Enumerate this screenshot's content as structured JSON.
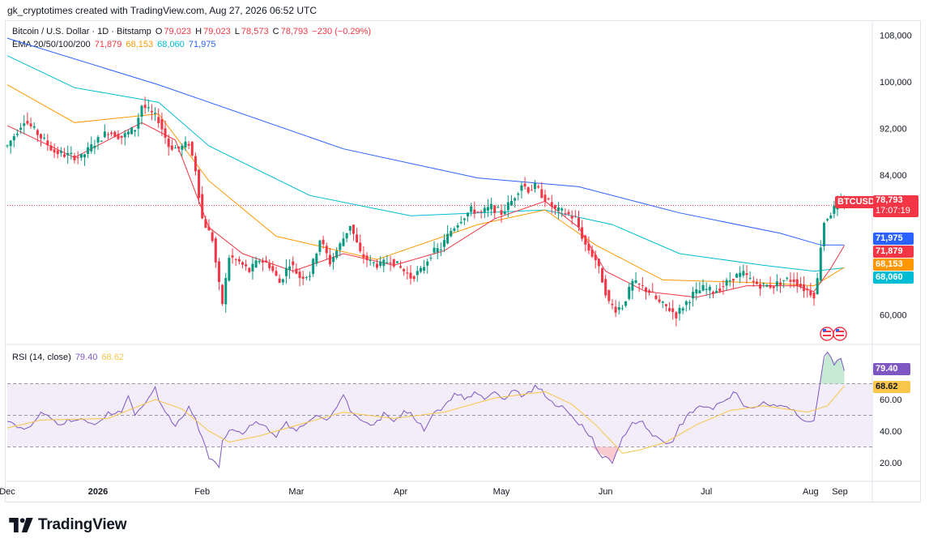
{
  "credit": "gk_cryptotimes created with TradingView.com, Aug 27, 2026 06:52 UTC",
  "symbol": {
    "name": "Bitcoin / U.S. Dollar · 1D · Bitstamp",
    "o_label": "O",
    "o": "79,023",
    "h_label": "H",
    "h": "79,023",
    "l_label": "L",
    "l": "78,573",
    "c_label": "C",
    "c": "78,793",
    "change": "−230 (−0.29%)",
    "ticker": "BTCUSD",
    "countdown": "17:07:19",
    "last": "78,793"
  },
  "ema": {
    "label": "EMA 20/50/100/200",
    "ema20": "71,879",
    "ema50": "68,153",
    "ema100": "68,060",
    "ema200": "71,975"
  },
  "rsi": {
    "label": "RSI (14, close)",
    "value": "79.40",
    "ma": "68.62"
  },
  "colors": {
    "up": "#089981",
    "down": "#f23645",
    "ema20": "#f23645",
    "ema50": "#ff9800",
    "ema100": "#00bcd4",
    "ema200": "#2962ff",
    "rsi": "#7e57c2",
    "rsi_ma": "#f7c64a"
  },
  "brand": "TradingView",
  "chart_data": [
    {
      "type": "candlestick",
      "title": "Bitcoin / U.S. Dollar · 1D · Bitstamp",
      "y_ticks": [
        "108,000",
        "100,000",
        "92,000",
        "84,000",
        "60,000"
      ],
      "y_tick_values": [
        108000,
        100000,
        92000,
        84000,
        60000
      ],
      "x_ticks": [
        "Dec",
        "2026",
        "Feb",
        "Mar",
        "Apr",
        "May",
        "Jun",
        "Jul",
        "Aug",
        "Sep"
      ],
      "ylim": [
        54000,
        110000
      ],
      "last_price": 78793,
      "anchors": [
        [
          0,
          89000
        ],
        [
          5,
          93500
        ],
        [
          10,
          90500
        ],
        [
          14,
          88000
        ],
        [
          17,
          87500
        ],
        [
          22,
          87000
        ],
        [
          26,
          89500
        ],
        [
          30,
          91500
        ],
        [
          34,
          90500
        ],
        [
          38,
          92000
        ],
        [
          40,
          96000
        ],
        [
          42,
          95000
        ],
        [
          45,
          93500
        ],
        [
          48,
          89000
        ],
        [
          51,
          88500
        ],
        [
          54,
          89500
        ],
        [
          56,
          85000
        ],
        [
          58,
          76500
        ],
        [
          61,
          73000
        ],
        [
          63,
          65000
        ],
        [
          64,
          62000
        ],
        [
          66,
          70000
        ],
        [
          69,
          69000
        ],
        [
          72,
          67500
        ],
        [
          75,
          69500
        ],
        [
          78,
          68500
        ],
        [
          81,
          65500
        ],
        [
          84,
          69000
        ],
        [
          87,
          66500
        ],
        [
          90,
          67000
        ],
        [
          93,
          73000
        ],
        [
          96,
          69000
        ],
        [
          99,
          72000
        ],
        [
          102,
          75500
        ],
        [
          105,
          70500
        ],
        [
          108,
          69000
        ],
        [
          111,
          68500
        ],
        [
          114,
          69500
        ],
        [
          117,
          68000
        ],
        [
          120,
          66500
        ],
        [
          123,
          67500
        ],
        [
          126,
          70500
        ],
        [
          129,
          71500
        ],
        [
          132,
          74500
        ],
        [
          135,
          76500
        ],
        [
          138,
          78000
        ],
        [
          141,
          77500
        ],
        [
          144,
          78500
        ],
        [
          147,
          77500
        ],
        [
          150,
          79500
        ],
        [
          153,
          82500
        ],
        [
          155,
          81500
        ],
        [
          157,
          82000
        ],
        [
          160,
          80000
        ],
        [
          163,
          78000
        ],
        [
          166,
          77500
        ],
        [
          169,
          76500
        ],
        [
          172,
          72000
        ],
        [
          175,
          69500
        ],
        [
          177,
          66000
        ],
        [
          179,
          62000
        ],
        [
          181,
          61000
        ],
        [
          183,
          61500
        ],
        [
          186,
          65500
        ],
        [
          188,
          65000
        ],
        [
          191,
          64000
        ],
        [
          194,
          62000
        ],
        [
          197,
          61000
        ],
        [
          199,
          60000
        ],
        [
          201,
          61500
        ],
        [
          204,
          63500
        ],
        [
          207,
          64500
        ],
        [
          210,
          64000
        ],
        [
          213,
          65000
        ],
        [
          216,
          66500
        ],
        [
          219,
          67000
        ],
        [
          222,
          65500
        ],
        [
          225,
          65000
        ],
        [
          228,
          65000
        ],
        [
          231,
          66000
        ],
        [
          234,
          66000
        ],
        [
          237,
          64500
        ],
        [
          240,
          63500
        ],
        [
          241,
          66000
        ],
        [
          242,
          72000
        ],
        [
          243,
          76000
        ],
        [
          245,
          77500
        ],
        [
          247,
          79000
        ],
        [
          249,
          78800
        ]
      ],
      "ema20": [
        [
          0,
          92500
        ],
        [
          20,
          87000
        ],
        [
          40,
          93000
        ],
        [
          50,
          90000
        ],
        [
          60,
          75000
        ],
        [
          70,
          70500
        ],
        [
          85,
          67500
        ],
        [
          100,
          70500
        ],
        [
          115,
          68500
        ],
        [
          130,
          71000
        ],
        [
          145,
          76500
        ],
        [
          160,
          79500
        ],
        [
          170,
          75000
        ],
        [
          178,
          67500
        ],
        [
          190,
          64000
        ],
        [
          205,
          63000
        ],
        [
          220,
          65000
        ],
        [
          235,
          65000
        ],
        [
          240,
          64000
        ],
        [
          245,
          68000
        ],
        [
          249,
          71879
        ]
      ],
      "ema50": [
        [
          0,
          99500
        ],
        [
          20,
          93000
        ],
        [
          45,
          94500
        ],
        [
          60,
          83000
        ],
        [
          80,
          73500
        ],
        [
          110,
          69500
        ],
        [
          140,
          75500
        ],
        [
          160,
          78000
        ],
        [
          175,
          72000
        ],
        [
          195,
          66000
        ],
        [
          225,
          65500
        ],
        [
          240,
          65000
        ],
        [
          249,
          68153
        ]
      ],
      "ema100": [
        [
          0,
          104500
        ],
        [
          20,
          99000
        ],
        [
          45,
          96500
        ],
        [
          60,
          89000
        ],
        [
          90,
          80500
        ],
        [
          120,
          77000
        ],
        [
          160,
          78000
        ],
        [
          180,
          75500
        ],
        [
          200,
          70500
        ],
        [
          225,
          68500
        ],
        [
          240,
          67500
        ],
        [
          249,
          68060
        ]
      ],
      "ema200": [
        [
          0,
          107500
        ],
        [
          45,
          99500
        ],
        [
          100,
          88500
        ],
        [
          140,
          83500
        ],
        [
          170,
          82000
        ],
        [
          200,
          77500
        ],
        [
          230,
          74000
        ],
        [
          242,
          72000
        ],
        [
          249,
          71975
        ]
      ]
    },
    {
      "type": "line",
      "title": "RSI (14, close)",
      "y_ticks": [
        "60.00",
        "40.00",
        "20.00"
      ],
      "y_tick_values": [
        60,
        40,
        20
      ],
      "bands": [
        30,
        50,
        70
      ],
      "ylim": [
        10,
        90
      ],
      "rsi": [
        [
          0,
          47
        ],
        [
          6,
          40
        ],
        [
          10,
          52
        ],
        [
          16,
          44
        ],
        [
          22,
          48
        ],
        [
          26,
          44
        ],
        [
          30,
          50
        ],
        [
          34,
          52
        ],
        [
          36,
          63
        ],
        [
          38,
          50
        ],
        [
          42,
          60
        ],
        [
          44,
          68
        ],
        [
          46,
          56
        ],
        [
          48,
          48
        ],
        [
          50,
          43
        ],
        [
          54,
          54
        ],
        [
          56,
          48
        ],
        [
          58,
          36
        ],
        [
          60,
          24
        ],
        [
          63,
          18
        ],
        [
          64,
          34
        ],
        [
          67,
          41
        ],
        [
          70,
          38
        ],
        [
          74,
          46
        ],
        [
          77,
          43
        ],
        [
          80,
          36
        ],
        [
          83,
          46
        ],
        [
          86,
          40
        ],
        [
          89,
          45
        ],
        [
          92,
          50
        ],
        [
          95,
          47
        ],
        [
          98,
          55
        ],
        [
          100,
          63
        ],
        [
          103,
          51
        ],
        [
          106,
          46
        ],
        [
          109,
          44
        ],
        [
          112,
          52
        ],
        [
          115,
          46
        ],
        [
          118,
          53
        ],
        [
          121,
          48
        ],
        [
          124,
          40
        ],
        [
          127,
          52
        ],
        [
          130,
          56
        ],
        [
          133,
          64
        ],
        [
          136,
          60
        ],
        [
          139,
          65
        ],
        [
          142,
          60
        ],
        [
          145,
          65
        ],
        [
          148,
          60
        ],
        [
          151,
          66
        ],
        [
          154,
          63
        ],
        [
          157,
          69
        ],
        [
          160,
          62
        ],
        [
          163,
          56
        ],
        [
          166,
          54
        ],
        [
          170,
          44
        ],
        [
          172,
          40
        ],
        [
          174,
          34
        ],
        [
          176,
          26
        ],
        [
          178,
          24
        ],
        [
          180,
          21
        ],
        [
          182,
          30
        ],
        [
          185,
          42
        ],
        [
          188,
          46
        ],
        [
          191,
          40
        ],
        [
          193,
          37
        ],
        [
          196,
          32
        ],
        [
          198,
          33
        ],
        [
          200,
          44
        ],
        [
          203,
          52
        ],
        [
          206,
          56
        ],
        [
          209,
          55
        ],
        [
          212,
          58
        ],
        [
          215,
          61
        ],
        [
          217,
          64
        ],
        [
          219,
          56
        ],
        [
          222,
          54
        ],
        [
          225,
          58
        ],
        [
          228,
          55
        ],
        [
          231,
          57
        ],
        [
          234,
          52
        ],
        [
          237,
          46
        ],
        [
          240,
          46
        ],
        [
          242,
          73
        ],
        [
          243,
          85
        ],
        [
          244,
          90
        ],
        [
          246,
          84
        ],
        [
          248,
          86
        ],
        [
          249,
          79.4
        ]
      ],
      "rsi_ma": [
        [
          0,
          42
        ],
        [
          10,
          47
        ],
        [
          30,
          48
        ],
        [
          44,
          60
        ],
        [
          52,
          54
        ],
        [
          60,
          40
        ],
        [
          66,
          33
        ],
        [
          75,
          37
        ],
        [
          90,
          46
        ],
        [
          100,
          52
        ],
        [
          115,
          48
        ],
        [
          130,
          52
        ],
        [
          145,
          61
        ],
        [
          160,
          65
        ],
        [
          168,
          57
        ],
        [
          175,
          44
        ],
        [
          180,
          33
        ],
        [
          183,
          26
        ],
        [
          188,
          28
        ],
        [
          196,
          33
        ],
        [
          205,
          44
        ],
        [
          215,
          53
        ],
        [
          225,
          56
        ],
        [
          238,
          52
        ],
        [
          244,
          56
        ],
        [
          249,
          68.62
        ]
      ]
    }
  ]
}
